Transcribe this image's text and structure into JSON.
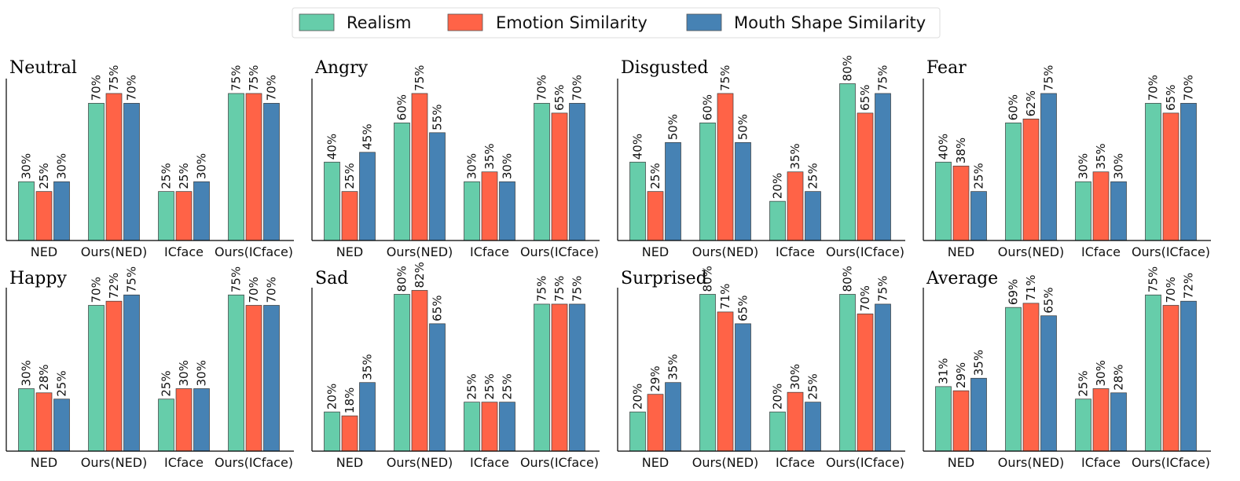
{
  "legend": [
    {
      "name": "Realism",
      "color": "#66cdaa"
    },
    {
      "name": "Emotion Similarity",
      "color": "#ff6347"
    },
    {
      "name": "Mouth Shape Similarity",
      "color": "#4682b4"
    }
  ],
  "chart_data": [
    {
      "type": "bar",
      "title": "Neutral",
      "categories": [
        "NED",
        "Ours(NED)",
        "ICface",
        "Ours(ICface)"
      ],
      "ylim": [
        0,
        85
      ],
      "series": [
        {
          "name": "Realism",
          "values": [
            30,
            70,
            25,
            75
          ]
        },
        {
          "name": "Emotion Similarity",
          "values": [
            25,
            75,
            25,
            75
          ]
        },
        {
          "name": "Mouth Shape Similarity",
          "values": [
            30,
            70,
            30,
            70
          ]
        }
      ]
    },
    {
      "type": "bar",
      "title": "Angry",
      "categories": [
        "NED",
        "Ours(NED)",
        "ICface",
        "Ours(ICface)"
      ],
      "ylim": [
        0,
        85
      ],
      "series": [
        {
          "name": "Realism",
          "values": [
            40,
            60,
            30,
            70
          ]
        },
        {
          "name": "Emotion Similarity",
          "values": [
            25,
            75,
            35,
            65
          ]
        },
        {
          "name": "Mouth Shape Similarity",
          "values": [
            45,
            55,
            30,
            70
          ]
        }
      ]
    },
    {
      "type": "bar",
      "title": "Disgusted",
      "categories": [
        "NED",
        "Ours(NED)",
        "ICface",
        "Ours(ICface)"
      ],
      "ylim": [
        0,
        85
      ],
      "series": [
        {
          "name": "Realism",
          "values": [
            40,
            60,
            20,
            80
          ]
        },
        {
          "name": "Emotion Similarity",
          "values": [
            25,
            75,
            35,
            65
          ]
        },
        {
          "name": "Mouth Shape Similarity",
          "values": [
            50,
            50,
            25,
            75
          ]
        }
      ]
    },
    {
      "type": "bar",
      "title": "Fear",
      "categories": [
        "NED",
        "Ours(NED)",
        "ICface",
        "Ours(ICface)"
      ],
      "ylim": [
        0,
        85
      ],
      "series": [
        {
          "name": "Realism",
          "values": [
            40,
            60,
            30,
            70
          ]
        },
        {
          "name": "Emotion Similarity",
          "values": [
            38,
            62,
            35,
            65
          ]
        },
        {
          "name": "Mouth Shape Similarity",
          "values": [
            25,
            75,
            30,
            70
          ]
        }
      ]
    },
    {
      "type": "bar",
      "title": "Happy",
      "categories": [
        "NED",
        "Ours(NED)",
        "ICface",
        "Ours(ICface)"
      ],
      "ylim": [
        0,
        80
      ],
      "series": [
        {
          "name": "Realism",
          "values": [
            30,
            70,
            25,
            75
          ]
        },
        {
          "name": "Emotion Similarity",
          "values": [
            28,
            72,
            30,
            70
          ]
        },
        {
          "name": "Mouth Shape Similarity",
          "values": [
            25,
            75,
            30,
            70
          ]
        }
      ]
    },
    {
      "type": "bar",
      "title": "Sad",
      "categories": [
        "NED",
        "Ours(NED)",
        "ICface",
        "Ours(ICface)"
      ],
      "ylim": [
        0,
        85
      ],
      "series": [
        {
          "name": "Realism",
          "values": [
            20,
            80,
            25,
            75
          ]
        },
        {
          "name": "Emotion Similarity",
          "values": [
            18,
            82,
            25,
            75
          ]
        },
        {
          "name": "Mouth Shape Similarity",
          "values": [
            35,
            65,
            25,
            75
          ]
        }
      ]
    },
    {
      "type": "bar",
      "title": "Surprised",
      "categories": [
        "NED",
        "Ours(NED)",
        "ICface",
        "Ours(ICface)"
      ],
      "ylim": [
        0,
        85
      ],
      "series": [
        {
          "name": "Realism",
          "values": [
            20,
            80,
            20,
            80
          ]
        },
        {
          "name": "Emotion Similarity",
          "values": [
            29,
            71,
            30,
            70
          ]
        },
        {
          "name": "Mouth Shape Similarity",
          "values": [
            35,
            65,
            25,
            75
          ]
        }
      ]
    },
    {
      "type": "bar",
      "title": "Average",
      "categories": [
        "NED",
        "Ours(NED)",
        "ICface",
        "Ours(ICface)"
      ],
      "ylim": [
        0,
        80
      ],
      "series": [
        {
          "name": "Realism",
          "values": [
            31,
            69,
            25,
            75
          ]
        },
        {
          "name": "Emotion Similarity",
          "values": [
            29,
            71,
            30,
            70
          ]
        },
        {
          "name": "Mouth Shape Similarity",
          "values": [
            35,
            65,
            28,
            72
          ]
        }
      ]
    }
  ]
}
